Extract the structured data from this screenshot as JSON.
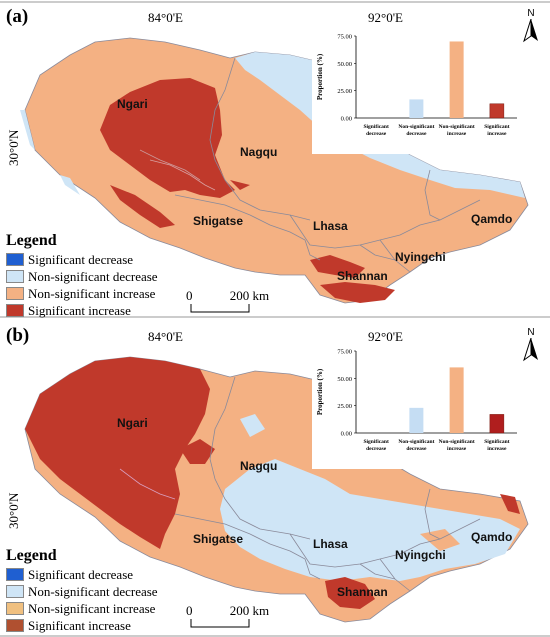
{
  "panels": [
    {
      "id": "a",
      "label": "(a)",
      "lon_labels": [
        "84°0'E",
        "92°0'E"
      ],
      "lat_label": "30°0'N",
      "north": "N",
      "regions": [
        "Ngari",
        "Nagqu",
        "Shigatse",
        "Lhasa",
        "Qamdo",
        "Nyingchi",
        "Shannan"
      ],
      "legend": {
        "title": "Legend",
        "items": [
          "Significant decrease",
          "Non-significant decrease",
          "Non-significant increase",
          "Significant increase"
        ]
      },
      "scale": {
        "zero": "0",
        "label": "200 km"
      },
      "chart_data": {
        "type": "bar",
        "ylabel": "Proportion  (%)",
        "ylim": [
          0,
          75
        ],
        "yticks": [
          "0.00",
          "25.00",
          "50.00",
          "75.00"
        ],
        "categories": [
          "Significant decrease",
          "Non-significant decrease",
          "Non-significant increase",
          "Significant increase"
        ],
        "values": [
          0,
          17,
          70,
          13
        ],
        "colors": [
          "#2b6fd6",
          "#c5ddf3",
          "#f4b183",
          "#c0392b"
        ]
      }
    },
    {
      "id": "b",
      "label": "(b)",
      "lon_labels": [
        "84°0'E",
        "92°0'E"
      ],
      "lat_label": "30°0'N",
      "north": "N",
      "regions": [
        "Ngari",
        "Nagqu",
        "Shigatse",
        "Lhasa",
        "Qamdo",
        "Nyingchi",
        "Shannan"
      ],
      "legend": {
        "title": "Legend",
        "items": [
          "Significant decrease",
          "Non-significant decrease",
          "Non-significant increase",
          "Significant increase"
        ]
      },
      "scale": {
        "zero": "0",
        "label": "200 km"
      },
      "chart_data": {
        "type": "bar",
        "ylabel": "Proportion  (%)",
        "ylim": [
          0,
          75
        ],
        "yticks": [
          "0.00",
          "25.00",
          "50.00",
          "75.00"
        ],
        "categories": [
          "Significant decrease",
          "Non-significant decrease",
          "Non-significant increase",
          "Significant increase"
        ],
        "values": [
          0,
          23,
          60,
          17
        ],
        "colors": [
          "#2b6fd6",
          "#c5ddf3",
          "#f4b183",
          "#b01e1e"
        ]
      }
    }
  ],
  "colors": {
    "sig_decrease": "#1f5fd1",
    "nonsig_decrease": "#cfe5f6",
    "nonsig_increase": "#f4b183",
    "sig_increase": "#c0392b",
    "boundary": "#8a8a9a"
  }
}
